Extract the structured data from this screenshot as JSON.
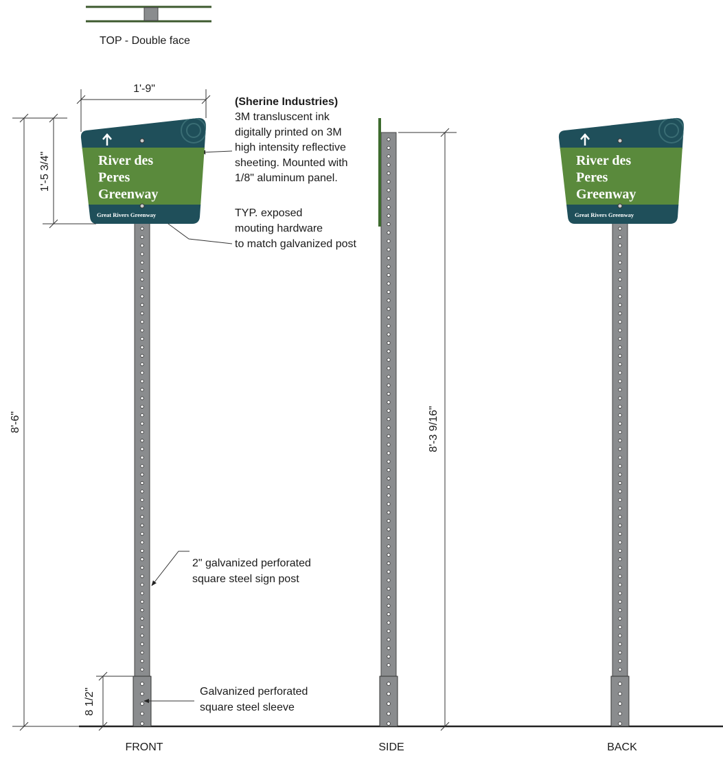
{
  "top_view": {
    "label": "TOP - Double face"
  },
  "dimensions": {
    "sign_width": "1'-9\"",
    "sign_height": "1'-5 3/4\"",
    "overall_height": "8'-6\"",
    "sleeve_height": "8 1/2\"",
    "side_height": "8'-3 9/16\""
  },
  "notes": {
    "panel": {
      "title": "(Sherine Industries)",
      "lines": [
        "3M transluscent ink",
        "digitally printed on 3M",
        "high intensity reflective",
        "sheeting. Mounted with",
        "1/8\" aluminum panel."
      ]
    },
    "hardware": [
      "TYP. exposed",
      "mouting hardware",
      "to match galvanized post"
    ],
    "post": [
      "2\" galvanized perforated",
      "square steel sign post"
    ],
    "sleeve": [
      "Galvanized perforated",
      "square steel sleeve"
    ]
  },
  "sign": {
    "lines": [
      "River des",
      "Peres",
      "Greenway"
    ],
    "footer": "Great Rivers Greenway"
  },
  "views": [
    "FRONT",
    "SIDE",
    "BACK"
  ]
}
